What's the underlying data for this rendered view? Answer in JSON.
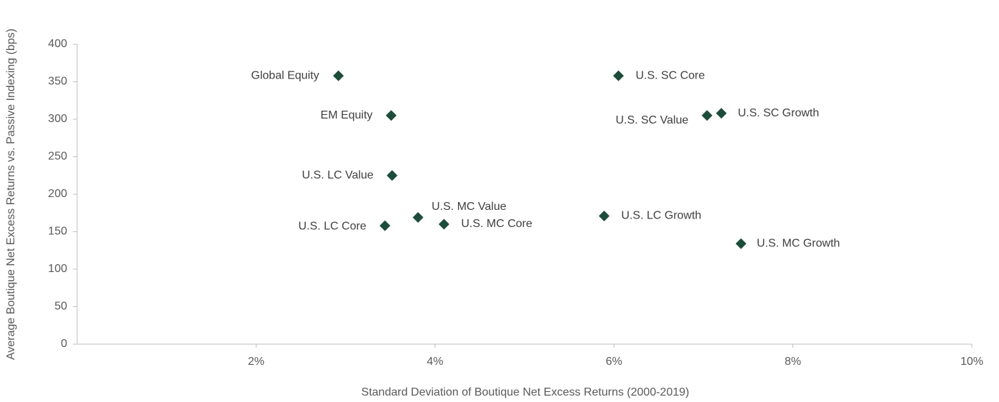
{
  "chart_data": {
    "type": "scatter",
    "x_label": "Standard Deviation of Boutique Net Excess Returns (2000-2019)",
    "y_label": "Average Boutique Net Excess Returns vs. Passive Indexing (bps)",
    "labels": [
      "Global Equity",
      "EM Equity",
      "U.S. LC Value",
      "U.S. LC Core",
      "U.S. MC Value",
      "U.S. MC Core",
      "U.S. LC Growth",
      "U.S. MC Growth",
      "U.S. SC Core",
      "U.S. SC Value",
      "U.S. SC Growth"
    ],
    "x": [
      2.92,
      3.51,
      3.52,
      3.44,
      3.81,
      4.1,
      5.89,
      7.42,
      6.05,
      7.04,
      7.2
    ],
    "values": [
      358,
      305,
      225,
      158,
      169,
      160,
      171,
      134,
      358,
      305,
      308
    ],
    "color": "#1d4d3a",
    "xlim": [
      0,
      10
    ],
    "xticks": [
      {
        "value": 2,
        "label": "2%"
      },
      {
        "value": 4,
        "label": "4%"
      },
      {
        "value": 6,
        "label": "6%"
      },
      {
        "value": 8,
        "label": "8%"
      },
      {
        "value": 10,
        "label": "10%"
      }
    ],
    "ylim": [
      0,
      400
    ],
    "yticks": [
      0,
      50,
      100,
      150,
      200,
      250,
      300,
      350,
      400
    ]
  }
}
